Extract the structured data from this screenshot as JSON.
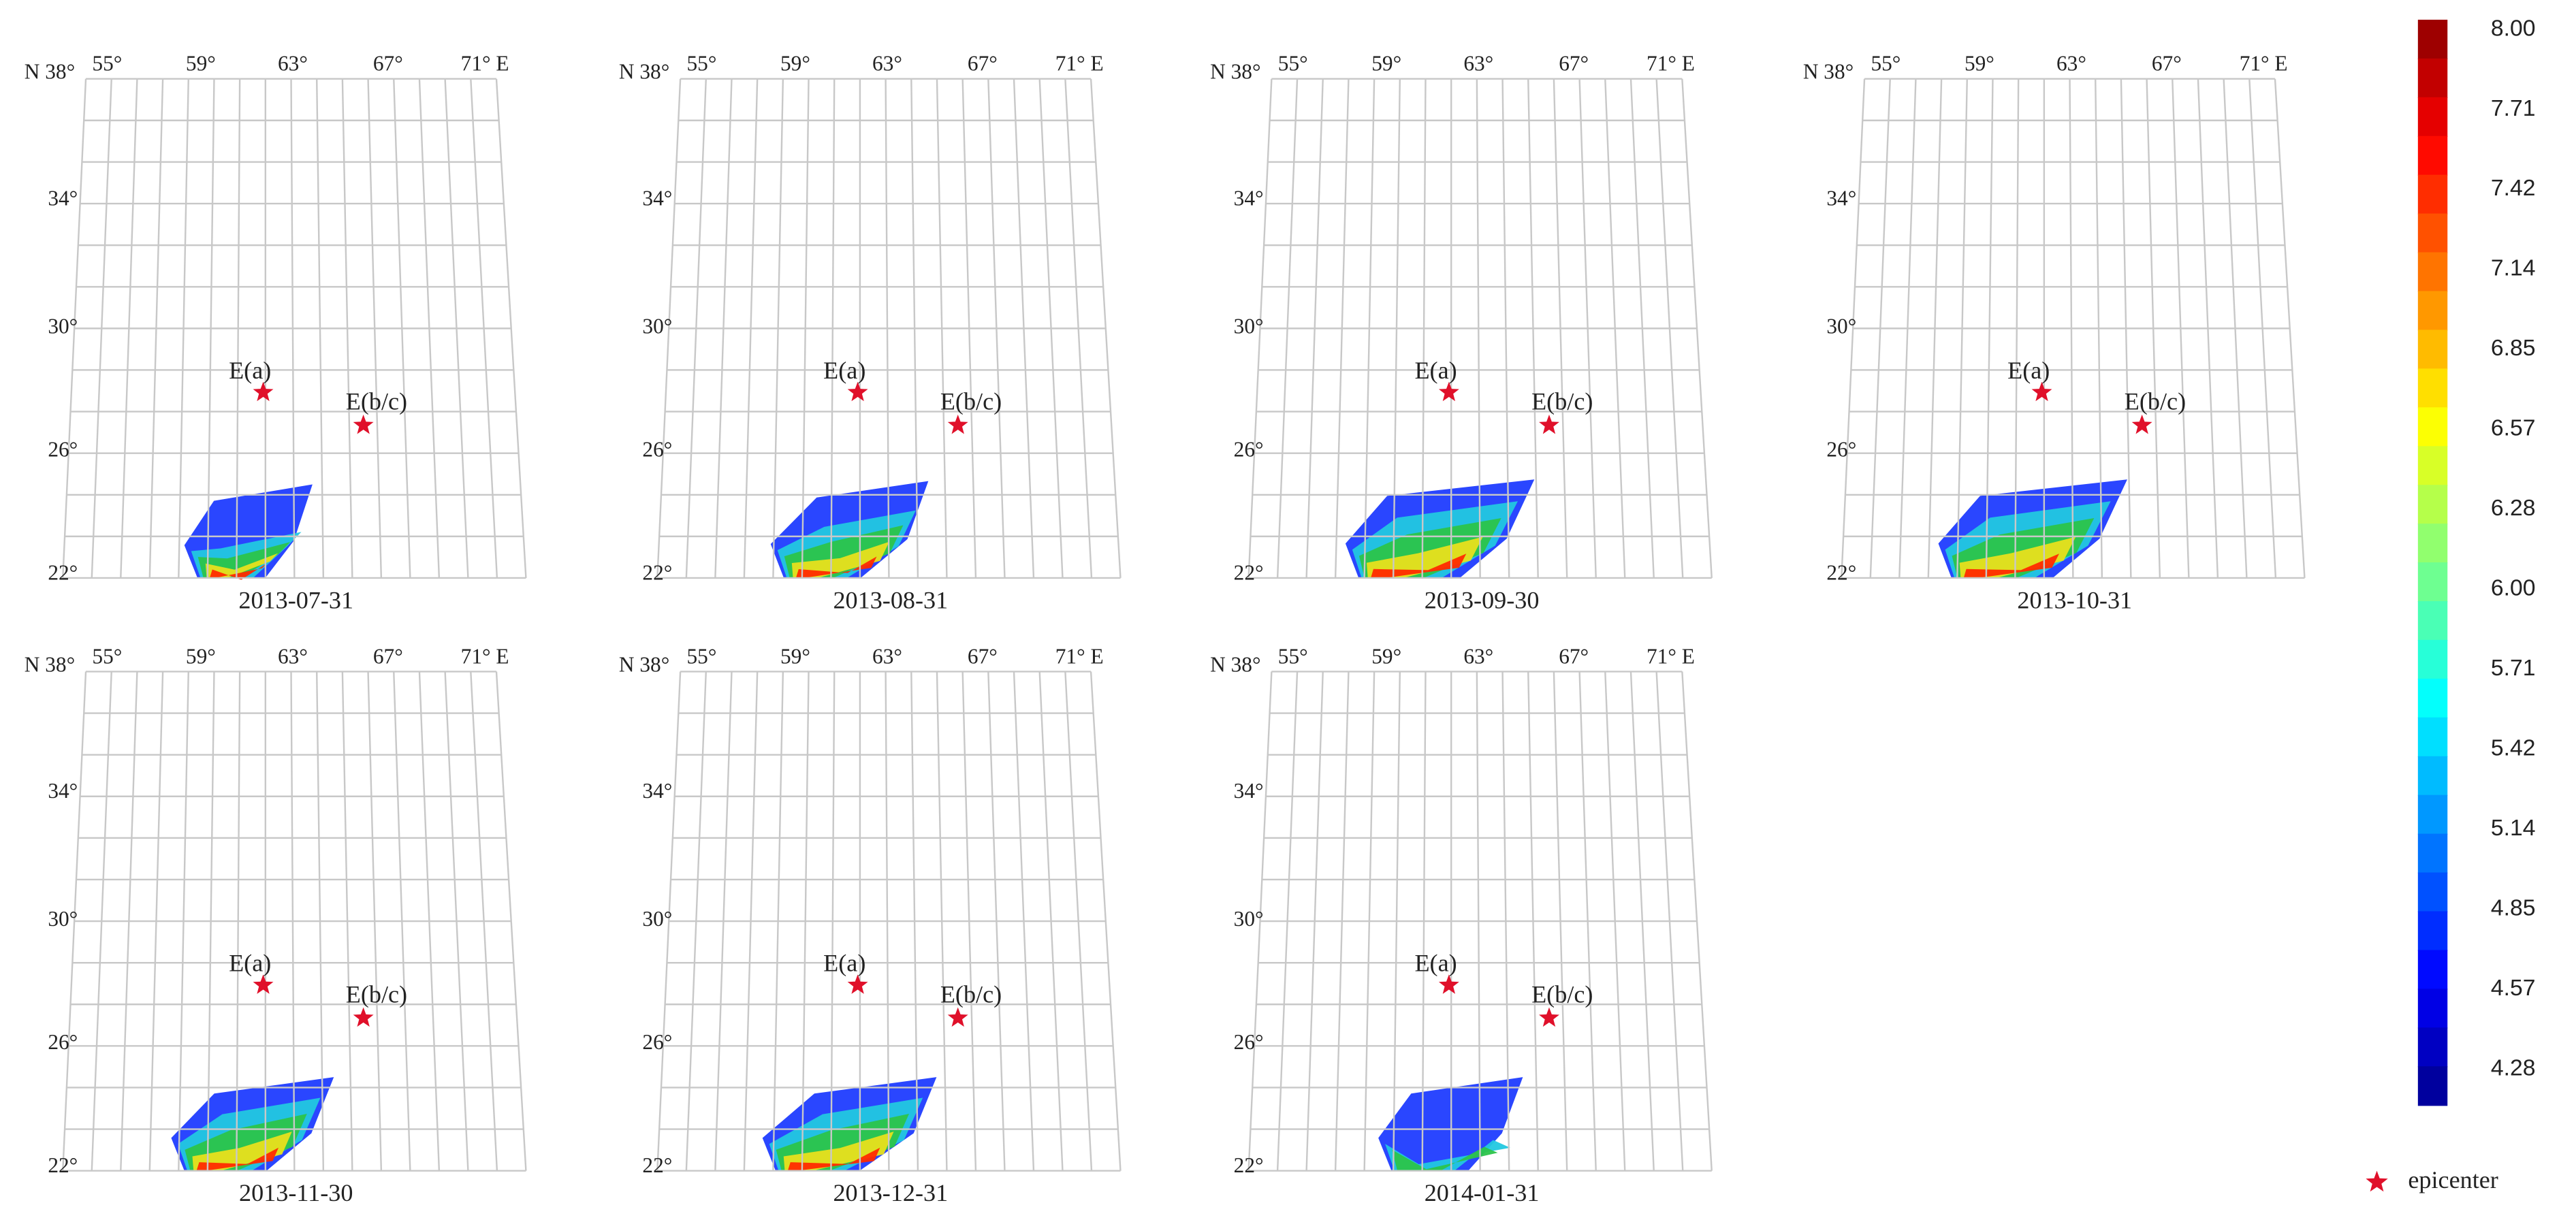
{
  "panels": [
    {
      "date": "2013-07-31"
    },
    {
      "date": "2013-08-31"
    },
    {
      "date": "2013-09-30"
    },
    {
      "date": "2013-10-31"
    },
    {
      "date": "2013-11-30"
    },
    {
      "date": "2013-12-31"
    },
    {
      "date": "2014-01-31"
    }
  ],
  "map_labels": {
    "lon": [
      "55°",
      "59°",
      "63°",
      "67°",
      "71° E"
    ],
    "lat": [
      "N 38°",
      "34°",
      "30°",
      "26°",
      "22°"
    ],
    "epicenters": [
      "E(a)",
      "E(b/c)"
    ]
  },
  "colorbar": {
    "tick_labels": [
      "8.00",
      "7.71",
      "7.42",
      "7.14",
      "6.85",
      "6.57",
      "6.28",
      "6.00",
      "5.71",
      "5.42",
      "5.14",
      "4.85",
      "4.57",
      "4.28"
    ]
  },
  "legend": {
    "label": "epicenter"
  }
}
